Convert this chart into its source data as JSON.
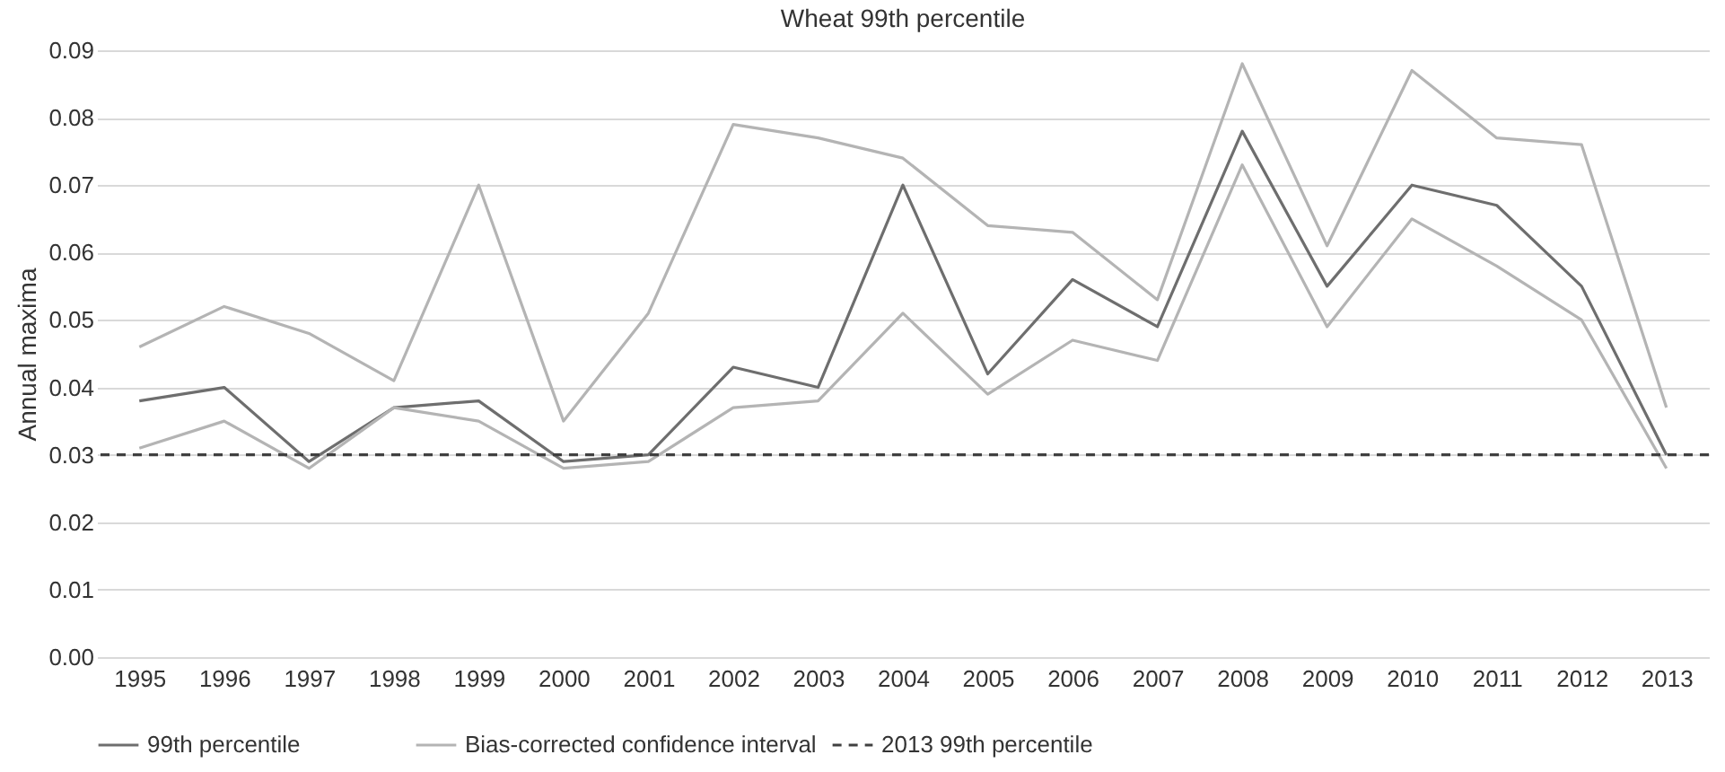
{
  "chart_data": {
    "type": "line",
    "title": "Wheat 99th percentile",
    "ylabel": "Annual maxima",
    "categories": [
      "1995",
      "1996",
      "1997",
      "1998",
      "1999",
      "2000",
      "2001",
      "2002",
      "2003",
      "2004",
      "2005",
      "2006",
      "2007",
      "2008",
      "2009",
      "2010",
      "2011",
      "2012",
      "2013"
    ],
    "series": [
      {
        "name": "99th percentile",
        "color": "#6e6e6e",
        "values": [
          0.038,
          0.04,
          0.029,
          0.037,
          0.038,
          0.029,
          0.03,
          0.043,
          0.04,
          0.07,
          0.042,
          0.056,
          0.049,
          0.078,
          0.055,
          0.07,
          0.067,
          0.055,
          0.03
        ]
      },
      {
        "name": "Bias-corrected confidence interval",
        "color": "#b4b4b4",
        "values": [
          0.046,
          0.052,
          0.048,
          0.041,
          0.07,
          0.035,
          0.051,
          0.079,
          0.077,
          0.074,
          0.064,
          0.063,
          0.053,
          0.088,
          0.061,
          0.087,
          0.077,
          0.076,
          0.037
        ]
      },
      {
        "color": "#b4b4b4",
        "values": [
          0.031,
          0.035,
          0.028,
          0.037,
          0.035,
          0.028,
          0.029,
          0.037,
          0.038,
          0.051,
          0.039,
          0.047,
          0.044,
          0.073,
          0.049,
          0.065,
          0.058,
          0.05,
          0.028
        ]
      }
    ],
    "ref_lines": [
      {
        "axis": "y",
        "value": 0.03,
        "label": "2013 99th percentile",
        "color": "#404040",
        "line_style": "dashed"
      }
    ],
    "ylim": [
      0,
      0.09
    ],
    "yticks": [
      {
        "value": 0,
        "label": "0.00"
      },
      {
        "value": 0.01,
        "label": "0.01"
      },
      {
        "value": 0.02,
        "label": "0.02"
      },
      {
        "value": 0.03,
        "label": "0.03"
      },
      {
        "value": 0.04,
        "label": "0.04"
      },
      {
        "value": 0.05,
        "label": "0.05"
      },
      {
        "value": 0.06,
        "label": "0.06"
      },
      {
        "value": 0.07,
        "label": "0.07"
      },
      {
        "value": 0.08,
        "label": "0.08"
      },
      {
        "value": 0.09,
        "label": "0.09"
      }
    ],
    "grid": "y",
    "legend": "bottom",
    "marker": "none",
    "line_style": "solid"
  }
}
